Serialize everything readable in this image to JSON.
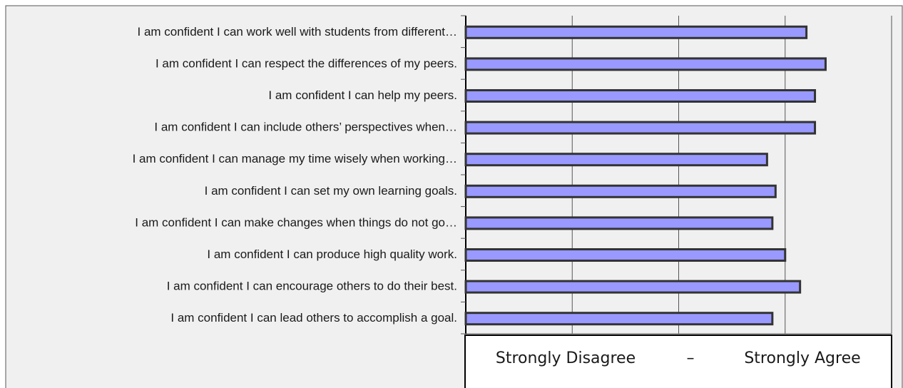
{
  "chart_data": {
    "type": "bar",
    "orientation": "horizontal",
    "categories": [
      "I am confident I can work well with students from different…",
      "I am confident I can respect the differences of my peers.",
      "I am confident I can help my peers.",
      "I am confident I can include others’ perspectives when…",
      "I am confident I can manage my time wisely when working…",
      "I am confident I can set my own learning goals.",
      "I am confident I can make changes when things do not go…",
      "I am confident I can produce high quality work.",
      "I am confident I can encourage others to do their best.",
      "I am confident I can lead others to accomplish a goal."
    ],
    "values": [
      4.2,
      4.38,
      4.28,
      4.28,
      3.83,
      3.91,
      3.88,
      4.0,
      4.14,
      3.88
    ],
    "color": "#9999ff",
    "xlim": [
      1,
      5
    ],
    "xticks": [
      1,
      2,
      3,
      4,
      5
    ],
    "grid": true,
    "annotations": [
      "Strongly Disagree",
      "–",
      "Strongly Agree"
    ]
  }
}
